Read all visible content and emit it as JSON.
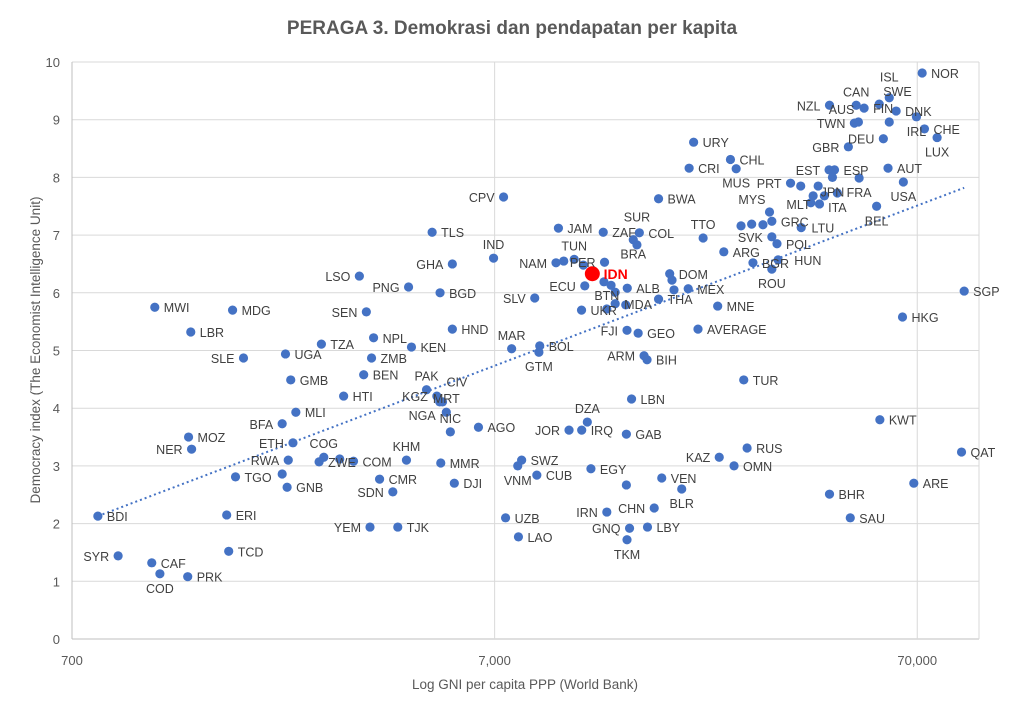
{
  "chart_data": {
    "type": "scatter",
    "title": "PERAGA 3. Demokrasi dan pendapatan per kapita",
    "xlabel": "Log GNI per capita PPP (World Bank)",
    "ylabel": "Democracy index (The Economist Intelligence Unit)",
    "xscale": "log",
    "xlim": [
      700,
      98000
    ],
    "ylim": [
      0,
      10
    ],
    "xticks": [
      700,
      7000,
      70000
    ],
    "xtick_labels": [
      "700",
      "7,000",
      "70,000"
    ],
    "yticks": [
      0,
      1,
      2,
      3,
      4,
      5,
      6,
      7,
      8,
      9,
      10
    ],
    "grid": true,
    "colors": {
      "point": "#4472c4",
      "highlight": "#ff0000",
      "trend": "#4472c4"
    },
    "highlight": "IDN",
    "trendline": {
      "type": "logarithmic",
      "x": [
        806,
        90400
      ],
      "y": [
        2.13,
        7.82
      ]
    },
    "points": [
      {
        "c": "BDI",
        "gni": 806,
        "dem": 2.13
      },
      {
        "c": "SYR",
        "gni": 900,
        "dem": 1.44
      },
      {
        "c": "CAF",
        "gni": 1081,
        "dem": 1.32
      },
      {
        "c": "COD",
        "gni": 1130,
        "dem": 1.13
      },
      {
        "c": "PRK",
        "gni": 1315,
        "dem": 1.08
      },
      {
        "c": "TCD",
        "gni": 1644,
        "dem": 1.52
      },
      {
        "c": "ERI",
        "gni": 1626,
        "dem": 2.15
      },
      {
        "c": "MWI",
        "gni": 1099,
        "dem": 5.75
      },
      {
        "c": "MDG",
        "gni": 1679,
        "dem": 5.7
      },
      {
        "c": "LBR",
        "gni": 1337,
        "dem": 5.32
      },
      {
        "c": "SLE",
        "gni": 1782,
        "dem": 4.87
      },
      {
        "c": "UGA",
        "gni": 2240,
        "dem": 4.94
      },
      {
        "c": "TZA",
        "gni": 2724,
        "dem": 5.11
      },
      {
        "c": "NPL",
        "gni": 3620,
        "dem": 5.22
      },
      {
        "c": "ZMB",
        "gni": 3580,
        "dem": 4.87
      },
      {
        "c": "BEN",
        "gni": 3430,
        "dem": 4.58
      },
      {
        "c": "GMB",
        "gni": 2305,
        "dem": 4.49
      },
      {
        "c": "HTI",
        "gni": 3075,
        "dem": 4.21
      },
      {
        "c": "MLI",
        "gni": 2370,
        "dem": 3.93
      },
      {
        "c": "BFA",
        "gni": 2200,
        "dem": 3.73
      },
      {
        "c": "MOZ",
        "gni": 1321,
        "dem": 3.5
      },
      {
        "c": "NER",
        "gni": 1343,
        "dem": 3.29
      },
      {
        "c": "ETH",
        "gni": 2333,
        "dem": 3.4
      },
      {
        "c": "RWA",
        "gni": 2274,
        "dem": 3.1
      },
      {
        "c": "TGO",
        "gni": 1706,
        "dem": 2.81
      },
      {
        "c": "",
        "gni": 2200,
        "dem": 2.86
      },
      {
        "c": "GNB",
        "gni": 2260,
        "dem": 2.63
      },
      {
        "c": "ZWE",
        "gni": 2690,
        "dem": 3.07
      },
      {
        "c": "COG",
        "gni": 2760,
        "dem": 3.15
      },
      {
        "c": "",
        "gni": 3010,
        "dem": 3.12
      },
      {
        "c": "COM",
        "gni": 3245,
        "dem": 3.08
      },
      {
        "c": "KHM",
        "gni": 4330,
        "dem": 3.1
      },
      {
        "c": "CMR",
        "gni": 3740,
        "dem": 2.77
      },
      {
        "c": "SDN",
        "gni": 4020,
        "dem": 2.55
      },
      {
        "c": "YEM",
        "gni": 3550,
        "dem": 1.94
      },
      {
        "c": "TJK",
        "gni": 4130,
        "dem": 1.94
      },
      {
        "c": "NIC",
        "gni": 5500,
        "dem": 3.59
      },
      {
        "c": "MMR",
        "gni": 5220,
        "dem": 3.05
      },
      {
        "c": "DJI",
        "gni": 5620,
        "dem": 2.7
      },
      {
        "c": "MRT",
        "gni": 5380,
        "dem": 3.93
      },
      {
        "c": "PAK",
        "gni": 4830,
        "dem": 4.32
      },
      {
        "c": "KGZ",
        "gni": 5110,
        "dem": 4.21
      },
      {
        "c": "NGA",
        "gni": 5190,
        "dem": 4.11
      },
      {
        "c": "CIV",
        "gni": 5270,
        "dem": 4.11
      },
      {
        "c": "AGO",
        "gni": 6410,
        "dem": 3.67
      },
      {
        "c": "HND",
        "gni": 5560,
        "dem": 5.37
      },
      {
        "c": "KEN",
        "gni": 4450,
        "dem": 5.06
      },
      {
        "c": "PNG",
        "gni": 4380,
        "dem": 6.1
      },
      {
        "c": "LSO",
        "gni": 3350,
        "dem": 6.29
      },
      {
        "c": "SEN",
        "gni": 3480,
        "dem": 5.67
      },
      {
        "c": "GHA",
        "gni": 5560,
        "dem": 6.5
      },
      {
        "c": "BGD",
        "gni": 5200,
        "dem": 6.0
      },
      {
        "c": "TLS",
        "gni": 4980,
        "dem": 7.05
      },
      {
        "c": "IND",
        "gni": 6960,
        "dem": 6.6
      },
      {
        "c": "CPV",
        "gni": 7350,
        "dem": 7.66
      },
      {
        "c": "MAR",
        "gni": 7680,
        "dem": 5.03
      },
      {
        "c": "BOL",
        "gni": 8950,
        "dem": 5.08
      },
      {
        "c": "GTM",
        "gni": 8910,
        "dem": 4.97
      },
      {
        "c": "NAM",
        "gni": 9780,
        "dem": 6.52
      },
      {
        "c": "",
        "gni": 10200,
        "dem": 6.55
      },
      {
        "c": "TUN",
        "gni": 10800,
        "dem": 6.58
      },
      {
        "c": "JAM",
        "gni": 9910,
        "dem": 7.12
      },
      {
        "c": "ZAF",
        "gni": 12650,
        "dem": 7.05
      },
      {
        "c": "COL",
        "gni": 15400,
        "dem": 7.04
      },
      {
        "c": "BRA",
        "gni": 14900,
        "dem": 6.92
      },
      {
        "c": "SUR",
        "gni": 15200,
        "dem": 6.83
      },
      {
        "c": "",
        "gni": 11350,
        "dem": 6.48
      },
      {
        "c": "PER",
        "gni": 12740,
        "dem": 6.53
      },
      {
        "c": "IDN",
        "gni": 11920,
        "dem": 6.33
      },
      {
        "c": "ECU",
        "gni": 11440,
        "dem": 6.12
      },
      {
        "c": "SLV",
        "gni": 8710,
        "dem": 5.91
      },
      {
        "c": "UKR",
        "gni": 11240,
        "dem": 5.7
      },
      {
        "c": "",
        "gni": 12700,
        "dem": 6.19
      },
      {
        "c": "",
        "gni": 13200,
        "dem": 6.13
      },
      {
        "c": "",
        "gni": 13500,
        "dem": 6.01
      },
      {
        "c": "ALB",
        "gni": 14420,
        "dem": 6.08
      },
      {
        "c": "BTN",
        "gni": 12900,
        "dem": 5.72
      },
      {
        "c": "MDA",
        "gni": 13500,
        "dem": 5.81
      },
      {
        "c": "",
        "gni": 14300,
        "dem": 5.79
      },
      {
        "c": "FJI",
        "gni": 14400,
        "dem": 5.35
      },
      {
        "c": "GEO",
        "gni": 15300,
        "dem": 5.3
      },
      {
        "c": "ARM",
        "gni": 15800,
        "dem": 4.91
      },
      {
        "c": "BIH",
        "gni": 16060,
        "dem": 4.84
      },
      {
        "c": "DOM",
        "gni": 18170,
        "dem": 6.33
      },
      {
        "c": "",
        "gni": 18400,
        "dem": 6.22
      },
      {
        "c": "",
        "gni": 18600,
        "dem": 6.05
      },
      {
        "c": "MEX",
        "gni": 20100,
        "dem": 6.07
      },
      {
        "c": "THA",
        "gni": 17100,
        "dem": 5.89
      },
      {
        "c": "MNE",
        "gni": 23600,
        "dem": 5.77
      },
      {
        "c": "AVERAGE",
        "gni": 21200,
        "dem": 5.37
      },
      {
        "c": "TTO",
        "gni": 21800,
        "dem": 6.95
      },
      {
        "c": "ARG",
        "gni": 24400,
        "dem": 6.71
      },
      {
        "c": "BGR",
        "gni": 28600,
        "dem": 6.52
      },
      {
        "c": "",
        "gni": 26800,
        "dem": 7.16
      },
      {
        "c": "",
        "gni": 28400,
        "dem": 7.19
      },
      {
        "c": "",
        "gni": 30200,
        "dem": 7.18
      },
      {
        "c": "MYS",
        "gni": 31300,
        "dem": 7.4
      },
      {
        "c": "GRC",
        "gni": 31700,
        "dem": 7.24
      },
      {
        "c": "SVK",
        "gni": 31700,
        "dem": 6.97
      },
      {
        "c": "POL",
        "gni": 32600,
        "dem": 6.85
      },
      {
        "c": "LTU",
        "gni": 37200,
        "dem": 7.13
      },
      {
        "c": "HUN",
        "gni": 32800,
        "dem": 6.57
      },
      {
        "c": "ROU",
        "gni": 31700,
        "dem": 6.41
      },
      {
        "c": "NOR",
        "gni": 71900,
        "dem": 9.81
      },
      {
        "c": "NZL",
        "gni": 43400,
        "dem": 9.25
      },
      {
        "c": "CAN",
        "gni": 50200,
        "dem": 9.25
      },
      {
        "c": "FIN",
        "gni": 52400,
        "dem": 9.2
      },
      {
        "c": "SWE",
        "gni": 56900,
        "dem": 9.27
      },
      {
        "c": "ISL",
        "gni": 60100,
        "dem": 9.38
      },
      {
        "c": "DNK",
        "gni": 62400,
        "dem": 9.15
      },
      {
        "c": "IRL",
        "gni": 69700,
        "dem": 9.05
      },
      {
        "c": "TWN",
        "gni": 49700,
        "dem": 8.94
      },
      {
        "c": "AUS",
        "gni": 50800,
        "dem": 8.96
      },
      {
        "c": "",
        "gni": 60100,
        "dem": 8.96
      },
      {
        "c": "CHE",
        "gni": 72800,
        "dem": 8.84
      },
      {
        "c": "DEU",
        "gni": 58200,
        "dem": 8.67
      },
      {
        "c": "LUX",
        "gni": 78000,
        "dem": 8.69
      },
      {
        "c": "GBR",
        "gni": 48100,
        "dem": 8.53
      },
      {
        "c": "URY",
        "gni": 20700,
        "dem": 8.61
      },
      {
        "c": "CHL",
        "gni": 25300,
        "dem": 8.31
      },
      {
        "c": "CRI",
        "gni": 20200,
        "dem": 8.16
      },
      {
        "c": "MUS",
        "gni": 26100,
        "dem": 8.15
      },
      {
        "c": "EST",
        "gni": 43300,
        "dem": 8.13
      },
      {
        "c": "ESP",
        "gni": 44600,
        "dem": 8.13
      },
      {
        "c": "JPN",
        "gni": 44100,
        "dem": 8.0
      },
      {
        "c": "FRA",
        "gni": 51000,
        "dem": 7.99
      },
      {
        "c": "AUT",
        "gni": 59700,
        "dem": 8.16
      },
      {
        "c": "USA",
        "gni": 64900,
        "dem": 7.92
      },
      {
        "c": "PRT",
        "gni": 35100,
        "dem": 7.9
      },
      {
        "c": "",
        "gni": 37100,
        "dem": 7.85
      },
      {
        "c": "",
        "gni": 40800,
        "dem": 7.85
      },
      {
        "c": "",
        "gni": 39700,
        "dem": 7.68
      },
      {
        "c": "",
        "gni": 42200,
        "dem": 7.68
      },
      {
        "c": "ITA",
        "gni": 45300,
        "dem": 7.73
      },
      {
        "c": "",
        "gni": 39200,
        "dem": 7.56
      },
      {
        "c": "MLT",
        "gni": 41100,
        "dem": 7.54
      },
      {
        "c": "BEL",
        "gni": 56100,
        "dem": 7.5
      },
      {
        "c": "SGP",
        "gni": 90400,
        "dem": 6.03
      },
      {
        "c": "HKG",
        "gni": 64600,
        "dem": 5.58
      },
      {
        "c": "BWA",
        "gni": 17100,
        "dem": 7.63
      },
      {
        "c": "TUR",
        "gni": 27200,
        "dem": 4.49
      },
      {
        "c": "LBN",
        "gni": 14760,
        "dem": 4.16
      },
      {
        "c": "DZA",
        "gni": 11600,
        "dem": 3.76
      },
      {
        "c": "JOR",
        "gni": 10500,
        "dem": 3.62
      },
      {
        "c": "IRQ",
        "gni": 11250,
        "dem": 3.62
      },
      {
        "c": "GAB",
        "gni": 14350,
        "dem": 3.55
      },
      {
        "c": "RUS",
        "gni": 27700,
        "dem": 3.31
      },
      {
        "c": "KAZ",
        "gni": 23800,
        "dem": 3.15
      },
      {
        "c": "OMN",
        "gni": 25800,
        "dem": 3.0
      },
      {
        "c": "SWZ",
        "gni": 8110,
        "dem": 3.1
      },
      {
        "c": "VNM",
        "gni": 7940,
        "dem": 3.0
      },
      {
        "c": "CUB",
        "gni": 8810,
        "dem": 2.84
      },
      {
        "c": "EGY",
        "gni": 11830,
        "dem": 2.95
      },
      {
        "c": "",
        "gni": 14350,
        "dem": 2.67
      },
      {
        "c": "VEN",
        "gni": 17400,
        "dem": 2.79
      },
      {
        "c": "BLR",
        "gni": 19400,
        "dem": 2.6
      },
      {
        "c": "CHN",
        "gni": 16700,
        "dem": 2.27
      },
      {
        "c": "IRN",
        "gni": 12900,
        "dem": 2.2
      },
      {
        "c": "GNQ",
        "gni": 14600,
        "dem": 1.92
      },
      {
        "c": "LBY",
        "gni": 16100,
        "dem": 1.94
      },
      {
        "c": "TKM",
        "gni": 14400,
        "dem": 1.72
      },
      {
        "c": "UZB",
        "gni": 7430,
        "dem": 2.1
      },
      {
        "c": "LAO",
        "gni": 7970,
        "dem": 1.77
      },
      {
        "c": "KWT",
        "gni": 57100,
        "dem": 3.8
      },
      {
        "c": "QAT",
        "gni": 89100,
        "dem": 3.24
      },
      {
        "c": "ARE",
        "gni": 68700,
        "dem": 2.7
      },
      {
        "c": "BHR",
        "gni": 43400,
        "dem": 2.51
      },
      {
        "c": "SAU",
        "gni": 48600,
        "dem": 2.1
      }
    ]
  }
}
